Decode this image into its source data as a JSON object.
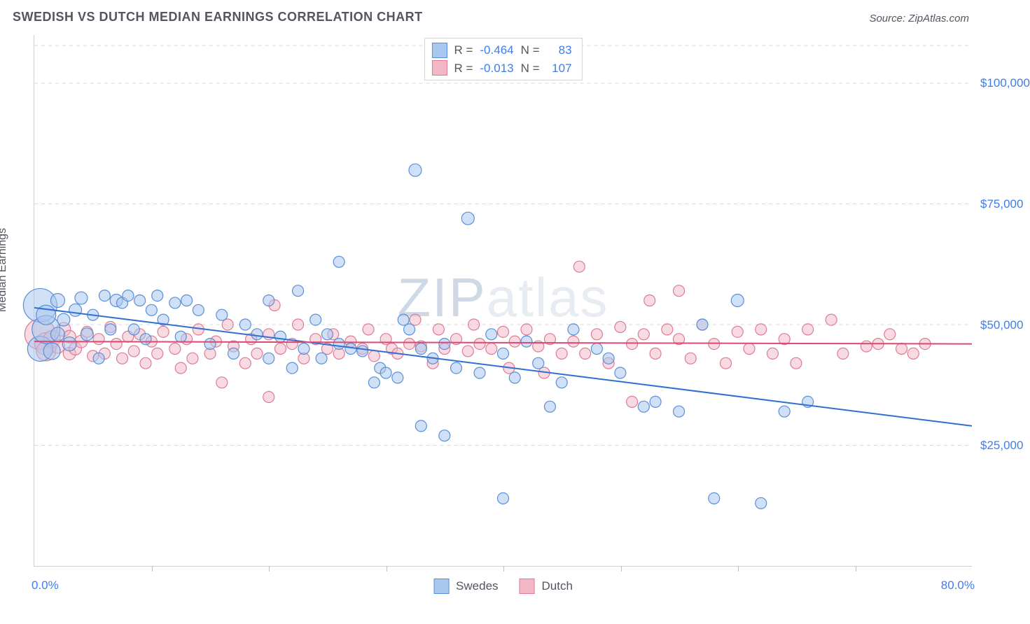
{
  "title": "SWEDISH VS DUTCH MEDIAN EARNINGS CORRELATION CHART",
  "source_label": "Source: ZipAtlas.com",
  "watermark_text_a": "ZIP",
  "watermark_text_b": "atlas",
  "chart": {
    "type": "scatter",
    "xlabel": "",
    "ylabel": "Median Earnings",
    "xlim": [
      0,
      80
    ],
    "ylim": [
      0,
      110000
    ],
    "x_tick_step": 10,
    "x_min_label": "0.0%",
    "x_max_label": "80.0%",
    "y_ticks": [
      25000,
      50000,
      75000,
      100000
    ],
    "y_tick_labels": [
      "$25,000",
      "$50,000",
      "$75,000",
      "$100,000"
    ],
    "grid_color": "#d9d9d9",
    "background_color": "#ffffff",
    "axis_label_color": "#555560",
    "value_label_color": "#3f7ee8",
    "label_fontsize": 16,
    "tick_fontsize": 17,
    "series": [
      {
        "name": "Swedes",
        "fill_color": "#a9c7ef",
        "stroke_color": "#5a8fd6",
        "fill_opacity": 0.55,
        "marker_r_base": 8,
        "trend": {
          "y_at_x0": 53500,
          "y_at_xmax": 29000,
          "stroke": "#2f6fd0",
          "width": 2
        },
        "stats": {
          "R": "-0.464",
          "N": "83"
        },
        "points": [
          [
            0.5,
            54000,
            24
          ],
          [
            0.5,
            45000,
            18
          ],
          [
            1,
            49000,
            20
          ],
          [
            1,
            52000,
            14
          ],
          [
            1.5,
            44500,
            12
          ],
          [
            2,
            55000,
            10
          ],
          [
            2,
            48000,
            10
          ],
          [
            2.5,
            51000,
            9
          ],
          [
            3,
            46000,
            10
          ],
          [
            3.5,
            53000,
            9
          ],
          [
            4,
            55500,
            9
          ],
          [
            4.5,
            48000,
            9
          ],
          [
            5,
            52000,
            8
          ],
          [
            5.5,
            43000,
            8
          ],
          [
            6,
            56000,
            8
          ],
          [
            6.5,
            49000,
            8
          ],
          [
            7,
            55000,
            9
          ],
          [
            7.5,
            54500,
            8
          ],
          [
            8,
            56000,
            8
          ],
          [
            8.5,
            49000,
            8
          ],
          [
            9,
            55000,
            8
          ],
          [
            9.5,
            47000,
            8
          ],
          [
            10,
            53000,
            8
          ],
          [
            10.5,
            56000,
            8
          ],
          [
            11,
            51000,
            8
          ],
          [
            12,
            54500,
            8
          ],
          [
            12.5,
            47500,
            8
          ],
          [
            13,
            55000,
            8
          ],
          [
            14,
            53000,
            8
          ],
          [
            15,
            46000,
            8
          ],
          [
            16,
            52000,
            8
          ],
          [
            17,
            44000,
            8
          ],
          [
            18,
            50000,
            8
          ],
          [
            19,
            48000,
            8
          ],
          [
            20,
            43000,
            8
          ],
          [
            20,
            55000,
            8
          ],
          [
            21,
            47500,
            8
          ],
          [
            22,
            41000,
            8
          ],
          [
            22.5,
            57000,
            8
          ],
          [
            23,
            45000,
            8
          ],
          [
            24,
            51000,
            8
          ],
          [
            24.5,
            43000,
            8
          ],
          [
            25,
            48000,
            8
          ],
          [
            26,
            46000,
            8
          ],
          [
            26,
            63000,
            8
          ],
          [
            27,
            45000,
            8
          ],
          [
            28,
            44500,
            8
          ],
          [
            29,
            38000,
            8
          ],
          [
            29.5,
            41000,
            8
          ],
          [
            30,
            40000,
            8
          ],
          [
            31,
            39000,
            8
          ],
          [
            31.5,
            51000,
            8
          ],
          [
            32,
            49000,
            8
          ],
          [
            32.5,
            82000,
            9
          ],
          [
            33,
            45000,
            8
          ],
          [
            33,
            29000,
            8
          ],
          [
            34,
            43000,
            8
          ],
          [
            35,
            46000,
            8
          ],
          [
            35,
            27000,
            8
          ],
          [
            36,
            41000,
            8
          ],
          [
            37,
            72000,
            9
          ],
          [
            38,
            40000,
            8
          ],
          [
            39,
            48000,
            8
          ],
          [
            40,
            44000,
            8
          ],
          [
            40,
            14000,
            8
          ],
          [
            41,
            39000,
            8
          ],
          [
            42,
            46500,
            8
          ],
          [
            43,
            42000,
            8
          ],
          [
            44,
            33000,
            8
          ],
          [
            45,
            38000,
            8
          ],
          [
            46,
            49000,
            8
          ],
          [
            48,
            45000,
            8
          ],
          [
            49,
            43000,
            8
          ],
          [
            50,
            40000,
            8
          ],
          [
            52,
            33000,
            8
          ],
          [
            53,
            34000,
            8
          ],
          [
            55,
            32000,
            8
          ],
          [
            57,
            50000,
            8
          ],
          [
            58,
            14000,
            8
          ],
          [
            60,
            55000,
            9
          ],
          [
            62,
            13000,
            8
          ],
          [
            64,
            32000,
            8
          ],
          [
            66,
            34000,
            8
          ]
        ]
      },
      {
        "name": "Dutch",
        "fill_color": "#f2b8c6",
        "stroke_color": "#dd7b96",
        "fill_opacity": 0.5,
        "marker_r_base": 8,
        "trend": {
          "y_at_x0": 46500,
          "y_at_xmax": 46000,
          "stroke": "#d94a74",
          "width": 2
        },
        "stats": {
          "R": "-0.013",
          "N": "107"
        },
        "points": [
          [
            0.5,
            48000,
            22
          ],
          [
            1,
            46000,
            16
          ],
          [
            1,
            44500,
            14
          ],
          [
            1.5,
            47000,
            12
          ],
          [
            2,
            45500,
            10
          ],
          [
            2.5,
            49000,
            10
          ],
          [
            3,
            44000,
            9
          ],
          [
            3,
            47500,
            9
          ],
          [
            3.5,
            45000,
            9
          ],
          [
            4,
            46500,
            9
          ],
          [
            4.5,
            48500,
            8
          ],
          [
            5,
            43500,
            8
          ],
          [
            5.5,
            47000,
            8
          ],
          [
            6,
            44000,
            8
          ],
          [
            6.5,
            49500,
            8
          ],
          [
            7,
            46000,
            8
          ],
          [
            7.5,
            43000,
            8
          ],
          [
            8,
            47500,
            8
          ],
          [
            8.5,
            44500,
            8
          ],
          [
            9,
            48000,
            8
          ],
          [
            9.5,
            42000,
            8
          ],
          [
            10,
            46500,
            8
          ],
          [
            10.5,
            44000,
            8
          ],
          [
            11,
            48500,
            8
          ],
          [
            12,
            45000,
            8
          ],
          [
            12.5,
            41000,
            8
          ],
          [
            13,
            47000,
            8
          ],
          [
            13.5,
            43000,
            8
          ],
          [
            14,
            49000,
            8
          ],
          [
            15,
            44000,
            8
          ],
          [
            15.5,
            46500,
            8
          ],
          [
            16,
            38000,
            8
          ],
          [
            16.5,
            50000,
            8
          ],
          [
            17,
            45500,
            8
          ],
          [
            18,
            42000,
            8
          ],
          [
            18.5,
            47000,
            8
          ],
          [
            19,
            44000,
            8
          ],
          [
            20,
            48000,
            8
          ],
          [
            20,
            35000,
            8
          ],
          [
            20.5,
            54000,
            8
          ],
          [
            21,
            45000,
            8
          ],
          [
            22,
            46000,
            8
          ],
          [
            22.5,
            50000,
            8
          ],
          [
            23,
            43000,
            8
          ],
          [
            24,
            47000,
            8
          ],
          [
            25,
            45000,
            8
          ],
          [
            25.5,
            48000,
            8
          ],
          [
            26,
            44000,
            8
          ],
          [
            27,
            46500,
            8
          ],
          [
            28,
            45000,
            8
          ],
          [
            28.5,
            49000,
            8
          ],
          [
            29,
            43500,
            8
          ],
          [
            30,
            47000,
            8
          ],
          [
            30.5,
            45000,
            8
          ],
          [
            31,
            44000,
            8
          ],
          [
            32,
            46000,
            8
          ],
          [
            32.5,
            51000,
            8
          ],
          [
            33,
            45500,
            8
          ],
          [
            34,
            42000,
            8
          ],
          [
            34.5,
            49000,
            8
          ],
          [
            35,
            45000,
            8
          ],
          [
            36,
            47000,
            8
          ],
          [
            37,
            44500,
            8
          ],
          [
            37.5,
            50000,
            8
          ],
          [
            38,
            46000,
            8
          ],
          [
            39,
            45000,
            8
          ],
          [
            40,
            48500,
            8
          ],
          [
            40.5,
            41000,
            8
          ],
          [
            41,
            46500,
            8
          ],
          [
            42,
            49000,
            8
          ],
          [
            43,
            45500,
            8
          ],
          [
            43.5,
            40000,
            8
          ],
          [
            44,
            47000,
            8
          ],
          [
            45,
            44000,
            8
          ],
          [
            46,
            46500,
            8
          ],
          [
            46.5,
            62000,
            8
          ],
          [
            47,
            44000,
            8
          ],
          [
            48,
            48000,
            8
          ],
          [
            49,
            42000,
            8
          ],
          [
            50,
            49500,
            8
          ],
          [
            51,
            34000,
            8
          ],
          [
            51,
            46000,
            8
          ],
          [
            52,
            48000,
            8
          ],
          [
            52.5,
            55000,
            8
          ],
          [
            53,
            44000,
            8
          ],
          [
            54,
            49000,
            8
          ],
          [
            55,
            47000,
            8
          ],
          [
            55,
            57000,
            8
          ],
          [
            56,
            43000,
            8
          ],
          [
            57,
            50000,
            8
          ],
          [
            58,
            46000,
            8
          ],
          [
            59,
            42000,
            8
          ],
          [
            60,
            48500,
            8
          ],
          [
            61,
            45000,
            8
          ],
          [
            62,
            49000,
            8
          ],
          [
            63,
            44000,
            8
          ],
          [
            64,
            47000,
            8
          ],
          [
            65,
            42000,
            8
          ],
          [
            66,
            49000,
            8
          ],
          [
            68,
            51000,
            8
          ],
          [
            69,
            44000,
            8
          ],
          [
            71,
            45500,
            8
          ],
          [
            72,
            46000,
            8
          ],
          [
            73,
            48000,
            8
          ],
          [
            74,
            45000,
            8
          ],
          [
            75,
            44000,
            8
          ],
          [
            76,
            46000,
            8
          ]
        ]
      }
    ]
  },
  "legend_prefix_R": "R =",
  "legend_prefix_N": "N ="
}
